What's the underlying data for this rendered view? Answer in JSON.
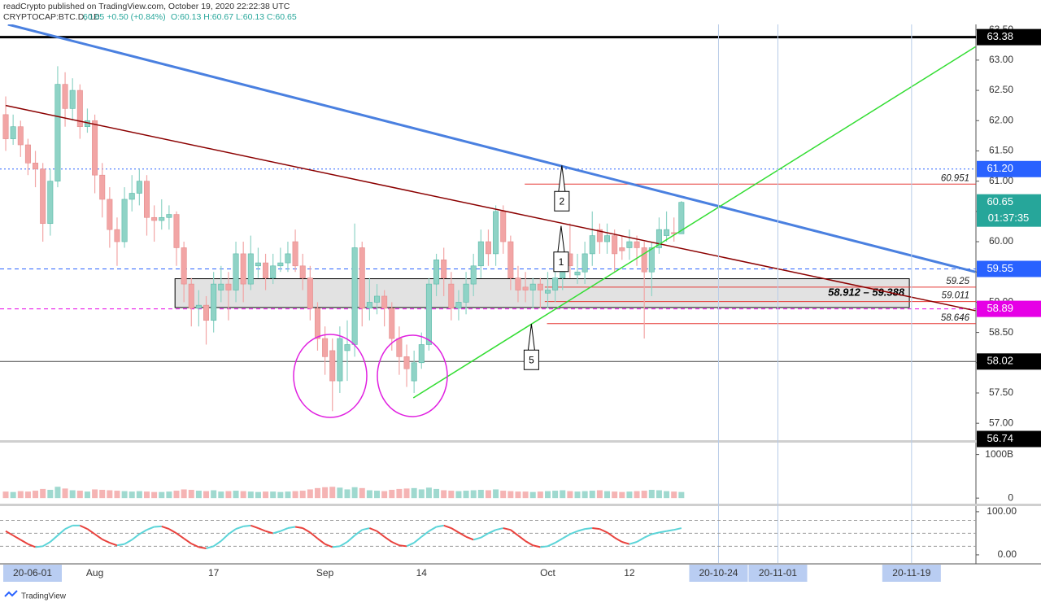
{
  "header": {
    "publisher": "readCrypto published on TradingView.com, October 19, 2020 22:22:38 UTC",
    "symbol": "CRYPTOCAP:BTC.D, 1D",
    "quote": "60.65 +0.50 (+0.84%)",
    "ohlc": "O:60.13 H:60.67 L:60.13 C:60.65"
  },
  "footer": {
    "brand": "TradingView",
    "left_date": "20-06-01"
  },
  "chart_data": {
    "type": "candlestick",
    "xlim": [
      -0.77,
      130.67
    ],
    "ylim": [
      56.72,
      63.59
    ],
    "xticks": [
      {
        "value": 12,
        "label": "Aug"
      },
      {
        "value": 28,
        "label": "17"
      },
      {
        "value": 43,
        "label": "Sep"
      },
      {
        "value": 56,
        "label": "14"
      },
      {
        "value": 73,
        "label": "Oct"
      },
      {
        "value": 84,
        "label": "12"
      }
    ],
    "xmarkers": [
      {
        "value": 96,
        "label": "20-10-24"
      },
      {
        "value": 104,
        "label": "20-11-01"
      },
      {
        "value": 122,
        "label": "20-11-19"
      }
    ],
    "yticks": [
      {
        "value": 57,
        "label": "57.00"
      },
      {
        "value": 57.5,
        "label": "57.50"
      },
      {
        "value": 58,
        "label": "58.00"
      },
      {
        "value": 58.5,
        "label": "58.50"
      },
      {
        "value": 59,
        "label": "59.00"
      },
      {
        "value": 59.5,
        "label": "59.50"
      },
      {
        "value": 60,
        "label": "60.00"
      },
      {
        "value": 60.5,
        "label": "60.50"
      },
      {
        "value": 61,
        "label": "61.00"
      },
      {
        "value": 61.5,
        "label": "61.50"
      },
      {
        "value": 62,
        "label": "62.00"
      },
      {
        "value": 62.5,
        "label": "62.50"
      },
      {
        "value": 63,
        "label": "63.00"
      },
      {
        "value": 63.5,
        "label": "63.50"
      }
    ],
    "up_color": "#8fd3c6",
    "down_color": "#f2a5a5",
    "open": [
      62.1,
      61.7,
      61.9,
      61.6,
      61.3,
      61.2,
      60.3,
      61.0,
      62.6,
      62.2,
      62.5,
      61.9,
      62.0,
      61.1,
      60.7,
      60.2,
      60.0,
      60.7,
      60.8,
      61.0,
      60.4,
      60.35,
      60.4,
      60.45,
      59.9,
      59.3,
      58.9,
      58.95,
      58.7,
      59.2,
      59.3,
      59.2,
      59.8,
      59.3,
      59.6,
      59.65,
      59.4,
      59.6,
      59.65,
      60.0,
      59.6,
      59.4,
      58.9,
      58.4,
      58.2,
      57.7,
      58.2,
      58.3,
      59.9,
      58.9,
      59.0,
      59.1,
      58.9,
      58.4,
      58.1,
      57.7,
      58.0,
      58.3,
      59.3,
      59.7,
      59.3,
      58.9,
      59.0,
      59.3,
      59.6,
      60.0,
      59.8,
      60.5,
      60.0,
      59.4,
      59.25,
      59.2,
      59.3,
      59.15,
      59.2,
      59.4,
      59.8,
      59.45,
      59.5,
      59.8,
      60.2,
      60.0,
      60.1,
      59.9,
      59.9,
      60.0,
      59.9,
      59.5,
      59.9,
      60.1,
      60.15,
      60.13
    ],
    "high": [
      62.4,
      62.1,
      62.0,
      61.7,
      61.5,
      61.3,
      61.2,
      62.9,
      62.8,
      62.7,
      62.6,
      62.2,
      62.1,
      61.3,
      60.9,
      60.4,
      60.9,
      61.1,
      61.2,
      61.1,
      60.6,
      60.7,
      60.6,
      60.5,
      60.0,
      59.4,
      59.2,
      59.1,
      59.5,
      59.6,
      59.5,
      60.0,
      60.0,
      60.1,
      59.9,
      59.8,
      59.8,
      59.9,
      60.0,
      60.2,
      59.8,
      59.6,
      59.0,
      58.6,
      58.4,
      58.6,
      58.7,
      60.3,
      60.0,
      59.4,
      59.3,
      59.2,
      59.0,
      58.6,
      58.3,
      58.2,
      58.5,
      59.4,
      59.8,
      59.9,
      59.5,
      59.2,
      59.5,
      59.8,
      60.2,
      60.2,
      60.6,
      60.6,
      60.1,
      59.6,
      59.5,
      59.4,
      59.4,
      59.5,
      59.7,
      60.0,
      60.3,
      59.8,
      60.0,
      60.5,
      60.3,
      60.3,
      60.2,
      60.1,
      60.2,
      60.1,
      60.0,
      60.0,
      60.4,
      60.5,
      60.4,
      60.67
    ],
    "low": [
      61.5,
      61.6,
      61.4,
      61.1,
      60.9,
      60.0,
      60.1,
      60.9,
      61.9,
      62.0,
      61.7,
      61.8,
      60.8,
      60.4,
      59.9,
      59.6,
      59.9,
      60.5,
      60.6,
      60.1,
      60.0,
      60.2,
      60.2,
      59.6,
      59.0,
      58.6,
      58.6,
      58.3,
      58.5,
      59.0,
      58.7,
      59.0,
      59.0,
      59.2,
      59.4,
      59.2,
      59.3,
      59.5,
      59.5,
      59.5,
      59.2,
      58.7,
      58.2,
      57.8,
      57.2,
      57.5,
      57.7,
      58.1,
      58.6,
      58.7,
      58.8,
      58.6,
      58.2,
      57.8,
      57.6,
      57.5,
      57.9,
      58.2,
      59.1,
      59.1,
      58.7,
      58.7,
      58.8,
      59.1,
      59.4,
      59.6,
      59.6,
      59.8,
      59.2,
      59.0,
      59.0,
      58.9,
      58.9,
      58.9,
      59.0,
      59.2,
      59.4,
      59.3,
      59.3,
      59.6,
      59.8,
      59.8,
      59.5,
      59.7,
      59.7,
      59.6,
      58.4,
      59.1,
      59.8,
      60.0,
      60.0,
      60.13
    ],
    "close": [
      61.7,
      61.9,
      61.6,
      61.3,
      61.2,
      60.3,
      61.0,
      62.6,
      62.2,
      62.5,
      61.9,
      62.0,
      61.1,
      60.7,
      60.2,
      60.0,
      60.7,
      60.8,
      61.0,
      60.4,
      60.35,
      60.4,
      60.45,
      59.9,
      59.3,
      58.9,
      58.95,
      58.7,
      59.3,
      59.3,
      59.2,
      59.8,
      59.3,
      59.8,
      59.65,
      59.4,
      59.6,
      59.65,
      59.8,
      59.6,
      59.4,
      58.9,
      58.4,
      58.1,
      57.7,
      58.4,
      58.3,
      59.9,
      58.9,
      59.0,
      59.1,
      58.9,
      58.4,
      58.1,
      57.9,
      58.0,
      58.3,
      59.3,
      59.7,
      59.4,
      58.9,
      59.0,
      59.3,
      59.6,
      60.0,
      59.8,
      60.5,
      60.0,
      59.4,
      59.2,
      59.2,
      59.3,
      59.2,
      59.2,
      59.4,
      59.8,
      59.6,
      59.5,
      59.8,
      60.1,
      60.0,
      60.1,
      59.8,
      59.85,
      60.0,
      59.9,
      59.5,
      59.9,
      60.2,
      60.2,
      60.13,
      60.65
    ],
    "levels": [
      {
        "value": 63.38,
        "color": "#000000",
        "dash": "solid",
        "width": 3
      },
      {
        "value": 61.2,
        "color": "#2962ff",
        "dash": "dotted",
        "width": 1
      },
      {
        "value": 59.55,
        "color": "#2962ff",
        "dash": "dashed",
        "width": 1
      },
      {
        "value": 58.89,
        "color": "#e600e6",
        "dash": "dashed",
        "width": 1
      },
      {
        "value": 58.02,
        "color": "#444444",
        "dash": "solid",
        "width": 1
      },
      {
        "value": 60.951,
        "color": "#e53935",
        "dash": "solid",
        "width": 1,
        "x_start": 69.9,
        "show_value": true
      },
      {
        "value": 59.25,
        "color": "#e53935",
        "dash": "solid",
        "width": 1,
        "x_start": 72.6,
        "show_value": true
      },
      {
        "value": 59.011,
        "color": "#e53935",
        "dash": "solid",
        "width": 1,
        "x_start": 72.6,
        "show_value": true
      },
      {
        "value": 58.646,
        "color": "#e53935",
        "dash": "solid",
        "width": 1,
        "x_start": 72.9,
        "show_value": true
      }
    ],
    "box": {
      "label": "58.912 – 59.388",
      "low": 58.912,
      "high": 59.388,
      "x_start": 22.8,
      "x_end": 121.7
    },
    "trend_lines": [
      {
        "color": "#4a80e0",
        "width": 3,
        "x": [
          0.3,
          130.6
        ],
        "y": [
          63.59,
          59.5
        ]
      },
      {
        "color": "#8b0000",
        "width": 1.5,
        "x": [
          0,
          130.6
        ],
        "y": [
          62.25,
          58.86
        ]
      },
      {
        "color": "#33dd33",
        "width": 1.5,
        "x": [
          54.9,
          130.6
        ],
        "y": [
          57.42,
          63.22
        ]
      }
    ],
    "annotations": [
      {
        "text": "2",
        "x": 74.9,
        "y": 61.26
      },
      {
        "text": "1",
        "x": 74.8,
        "y": 60.26
      },
      {
        "text": "5",
        "x": 70.8,
        "y": 58.64
      }
    ],
    "price_tags": [
      {
        "value": 63.38,
        "color": "#000000"
      },
      {
        "value": 61.2,
        "label": "61.20",
        "color": "#2962ff"
      },
      {
        "value": 60.65,
        "color": "#26a69a",
        "countdown": "01:37:35"
      },
      {
        "value": 59.55,
        "color": "#2962ff"
      },
      {
        "value": 58.89,
        "color": "#e600e6"
      },
      {
        "value": 58.02,
        "color": "#000000"
      },
      {
        "value": 56.74,
        "color": "#000000"
      }
    ],
    "volume_pane": {
      "ylim": [
        -109,
        1254
      ],
      "yticks": [
        {
          "value": 1000,
          "label": "1000B"
        },
        0
      ],
      "values": [
        150,
        140,
        160,
        150,
        170,
        210,
        190,
        260,
        220,
        180,
        170,
        150,
        200,
        190,
        180,
        170,
        160,
        150,
        160,
        150,
        140,
        140,
        150,
        170,
        200,
        190,
        170,
        160,
        180,
        150,
        160,
        170,
        160,
        150,
        140,
        150,
        150,
        140,
        150,
        160,
        170,
        200,
        230,
        250,
        260,
        240,
        200,
        250,
        230,
        180,
        170,
        160,
        190,
        210,
        220,
        230,
        200,
        240,
        210,
        180,
        170,
        160,
        170,
        180,
        190,
        180,
        200,
        170,
        160,
        150,
        150,
        140,
        150,
        160,
        170,
        180,
        160,
        150,
        160,
        170,
        180,
        160,
        150,
        140,
        150,
        160,
        170,
        190,
        180,
        160,
        150,
        140
      ]
    },
    "oscillator_pane": {
      "ylim": [
        -19,
        113
      ],
      "yticks": [
        {
          "value": 100,
          "label": "100.00"
        },
        {
          "value": 0,
          "label": "0.00"
        }
      ],
      "levels": [
        80,
        50,
        20
      ],
      "rise_color": "#5bd4d8",
      "fall_color": "#e8413c",
      "values": [
        55,
        45,
        35,
        25,
        18,
        20,
        30,
        45,
        60,
        68,
        68,
        60,
        48,
        36,
        28,
        22,
        25,
        35,
        48,
        58,
        65,
        66,
        60,
        50,
        38,
        26,
        18,
        15,
        20,
        32,
        48,
        60,
        66,
        68,
        62,
        55,
        50,
        55,
        62,
        65,
        62,
        52,
        38,
        25,
        18,
        20,
        30,
        45,
        58,
        62,
        55,
        42,
        30,
        22,
        20,
        28,
        42,
        55,
        65,
        68,
        62,
        52,
        42,
        35,
        40,
        50,
        58,
        62,
        58,
        45,
        32,
        22,
        18,
        20,
        28,
        38,
        48,
        55,
        60,
        62,
        60,
        52,
        40,
        30,
        25,
        30,
        40,
        48,
        52,
        55,
        58,
        62
      ]
    }
  }
}
